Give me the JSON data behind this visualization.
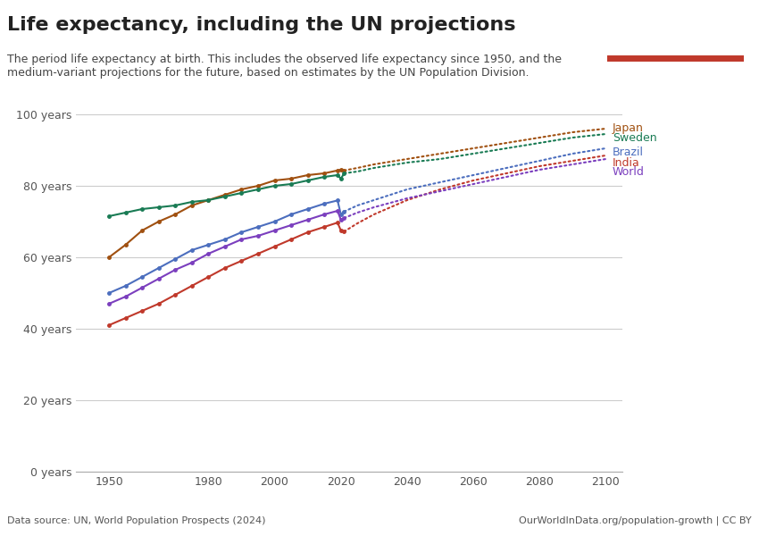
{
  "title": "Life expectancy, including the UN projections",
  "subtitle_line1": "The period life expectancy at birth. This includes the observed life expectancy since 1950, and the",
  "subtitle_line2": "medium-variant projections for the future, based on estimates by the UN Population Division.",
  "datasource": "Data source: UN, World Population Prospects (2024)",
  "url": "OurWorldInData.org/population-growth | CC BY",
  "xlim": [
    1940,
    2105
  ],
  "ylim": [
    0,
    105
  ],
  "xticks": [
    1950,
    1980,
    2000,
    2020,
    2040,
    2060,
    2080,
    2100
  ],
  "yticks": [
    0,
    20,
    40,
    60,
    80,
    100
  ],
  "ytick_labels": [
    "0 years",
    "20 years",
    "40 years",
    "60 years",
    "80 years",
    "100 years"
  ],
  "bg_color": "#ffffff",
  "grid_color": "#cccccc",
  "series": [
    {
      "name": "Japan",
      "color": "#a05010",
      "observed_x": [
        1950,
        1955,
        1960,
        1965,
        1970,
        1975,
        1980,
        1985,
        1990,
        1995,
        2000,
        2005,
        2010,
        2015,
        2019,
        2020,
        2021
      ],
      "observed_y": [
        60,
        63.5,
        67.5,
        70,
        72,
        74.5,
        76,
        77.5,
        79,
        80,
        81.5,
        82,
        83,
        83.5,
        84.3,
        84.5,
        84.3
      ],
      "projected_x": [
        2021,
        2025,
        2030,
        2040,
        2050,
        2060,
        2070,
        2080,
        2090,
        2100
      ],
      "projected_y": [
        84.3,
        85,
        86,
        87.5,
        89,
        90.5,
        92,
        93.5,
        95,
        96
      ]
    },
    {
      "name": "Sweden",
      "color": "#197B54",
      "observed_x": [
        1950,
        1955,
        1960,
        1965,
        1970,
        1975,
        1980,
        1985,
        1990,
        1995,
        2000,
        2005,
        2010,
        2015,
        2019,
        2020,
        2021
      ],
      "observed_y": [
        71.5,
        72.5,
        73.5,
        74,
        74.5,
        75.5,
        76,
        77,
        78,
        79,
        80,
        80.5,
        81.5,
        82.5,
        83,
        82,
        83.5
      ],
      "projected_x": [
        2021,
        2025,
        2030,
        2040,
        2050,
        2060,
        2070,
        2080,
        2090,
        2100
      ],
      "projected_y": [
        83.5,
        84,
        85,
        86.5,
        87.5,
        89,
        90.5,
        92,
        93.5,
        94.5
      ]
    },
    {
      "name": "Brazil",
      "color": "#4C6EBE",
      "observed_x": [
        1950,
        1955,
        1960,
        1965,
        1970,
        1975,
        1980,
        1985,
        1990,
        1995,
        2000,
        2005,
        2010,
        2015,
        2019,
        2020,
        2021
      ],
      "observed_y": [
        50,
        52,
        54.5,
        57,
        59.5,
        62,
        63.5,
        65,
        67,
        68.5,
        70,
        72,
        73.5,
        75,
        75.9,
        72,
        72.8
      ],
      "projected_x": [
        2021,
        2025,
        2030,
        2040,
        2050,
        2060,
        2070,
        2080,
        2090,
        2100
      ],
      "projected_y": [
        72.8,
        74.5,
        76,
        79,
        81,
        83,
        85,
        87,
        89,
        90.5
      ]
    },
    {
      "name": "India",
      "color": "#C0392B",
      "observed_x": [
        1950,
        1955,
        1960,
        1965,
        1970,
        1975,
        1980,
        1985,
        1990,
        1995,
        2000,
        2005,
        2010,
        2015,
        2019,
        2020,
        2021
      ],
      "observed_y": [
        41,
        43,
        45,
        47,
        49.5,
        52,
        54.5,
        57,
        59,
        61,
        63,
        65,
        67,
        68.5,
        69.7,
        67.5,
        67.2
      ],
      "projected_x": [
        2021,
        2025,
        2030,
        2040,
        2050,
        2060,
        2070,
        2080,
        2090,
        2100
      ],
      "projected_y": [
        67.2,
        69.5,
        72,
        76,
        79,
        81.5,
        83.5,
        85.5,
        87,
        88.5
      ]
    },
    {
      "name": "World",
      "color": "#7B3FBE",
      "observed_x": [
        1950,
        1955,
        1960,
        1965,
        1970,
        1975,
        1980,
        1985,
        1990,
        1995,
        2000,
        2005,
        2010,
        2015,
        2019,
        2020,
        2021
      ],
      "observed_y": [
        47,
        49,
        51.5,
        54,
        56.5,
        58.5,
        61,
        63,
        65,
        66,
        67.5,
        69,
        70.5,
        72,
        73,
        70.5,
        71
      ],
      "projected_x": [
        2021,
        2025,
        2030,
        2040,
        2050,
        2060,
        2070,
        2080,
        2090,
        2100
      ],
      "projected_y": [
        71,
        72.5,
        74,
        76.5,
        78.5,
        80.5,
        82.5,
        84.5,
        86,
        87.5
      ]
    }
  ]
}
